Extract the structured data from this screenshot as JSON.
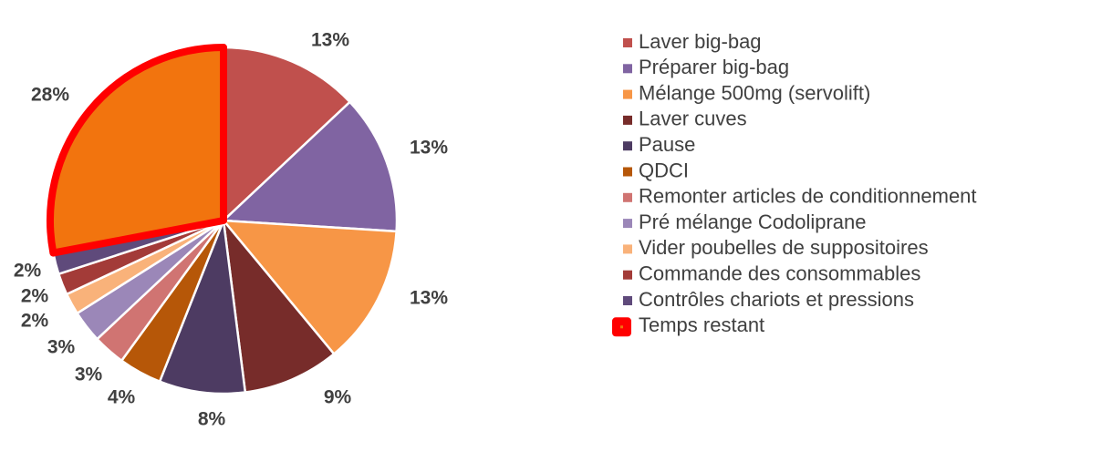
{
  "chart_data": {
    "type": "pie",
    "categories": [
      "Laver big-bag",
      "Préparer big-bag",
      "Mélange 500mg (servolift)",
      "Laver cuves",
      "Pause",
      "QDCI",
      "Remonter articles de conditionnement",
      "Pré mélange Codoliprane",
      "Vider poubelles de suppositoires",
      "Commande des consommables",
      "Contrôles chariots et pressions",
      "Temps restant"
    ],
    "values": [
      13,
      13,
      13,
      9,
      8,
      4,
      3,
      3,
      2,
      2,
      2,
      28
    ],
    "colors": [
      "#c0504d",
      "#8064a2",
      "#f79646",
      "#772c2a",
      "#4d3b62",
      "#b65708",
      "#d07472",
      "#9b87b8",
      "#f9b27a",
      "#a33b38",
      "#5f4a7b",
      "#f2740e"
    ],
    "highlight": {
      "index": 11,
      "stroke": "#ff0000"
    }
  }
}
